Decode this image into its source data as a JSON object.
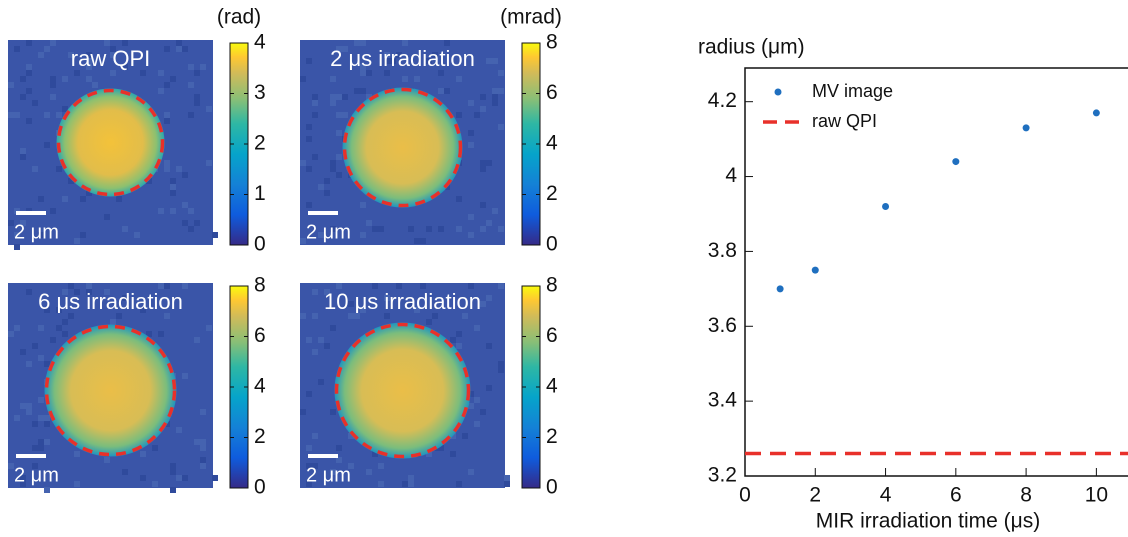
{
  "panels": [
    {
      "label": "raw QPI",
      "scale_bar": "2 μm",
      "colorbar": {
        "unit": "(rad)",
        "lim": [
          0,
          4
        ],
        "ticks": [
          0,
          1,
          2,
          3,
          4
        ]
      }
    },
    {
      "label": "2 μs irradiation",
      "scale_bar": "2 μm",
      "colorbar": {
        "unit": "(mrad)",
        "lim": [
          0,
          8
        ],
        "ticks": [
          0,
          2,
          4,
          6,
          8
        ]
      }
    },
    {
      "label": "6 μs irradiation",
      "scale_bar": "2 μm",
      "colorbar": {
        "lim": [
          0,
          8
        ],
        "ticks": [
          0,
          2,
          4,
          6,
          8
        ]
      }
    },
    {
      "label": "10 μs irradiation",
      "scale_bar": "2 μm",
      "colorbar": {
        "lim": [
          0,
          8
        ],
        "ticks": [
          0,
          2,
          4,
          6,
          8
        ]
      }
    }
  ],
  "chart_data": {
    "type": "scatter",
    "ylabel": "radius (μm)",
    "xlabel": "MIR irradiation time (μs)",
    "x": [
      1,
      2,
      4,
      6,
      8,
      10
    ],
    "series": [
      {
        "name": "MV image",
        "color": "#1f6fbf",
        "values": [
          3.7,
          3.75,
          3.92,
          4.04,
          4.13,
          4.17
        ]
      }
    ],
    "reference_lines": [
      {
        "name": "raw QPI",
        "color": "#e8302a",
        "value": 3.26
      }
    ],
    "xlim": [
      0,
      10.9
    ],
    "xticks": [
      0,
      2,
      4,
      6,
      8,
      10
    ],
    "ylim": [
      3.2,
      4.29
    ],
    "yticks": [
      3.2,
      3.4,
      3.6,
      3.8,
      4.0,
      4.2
    ]
  }
}
